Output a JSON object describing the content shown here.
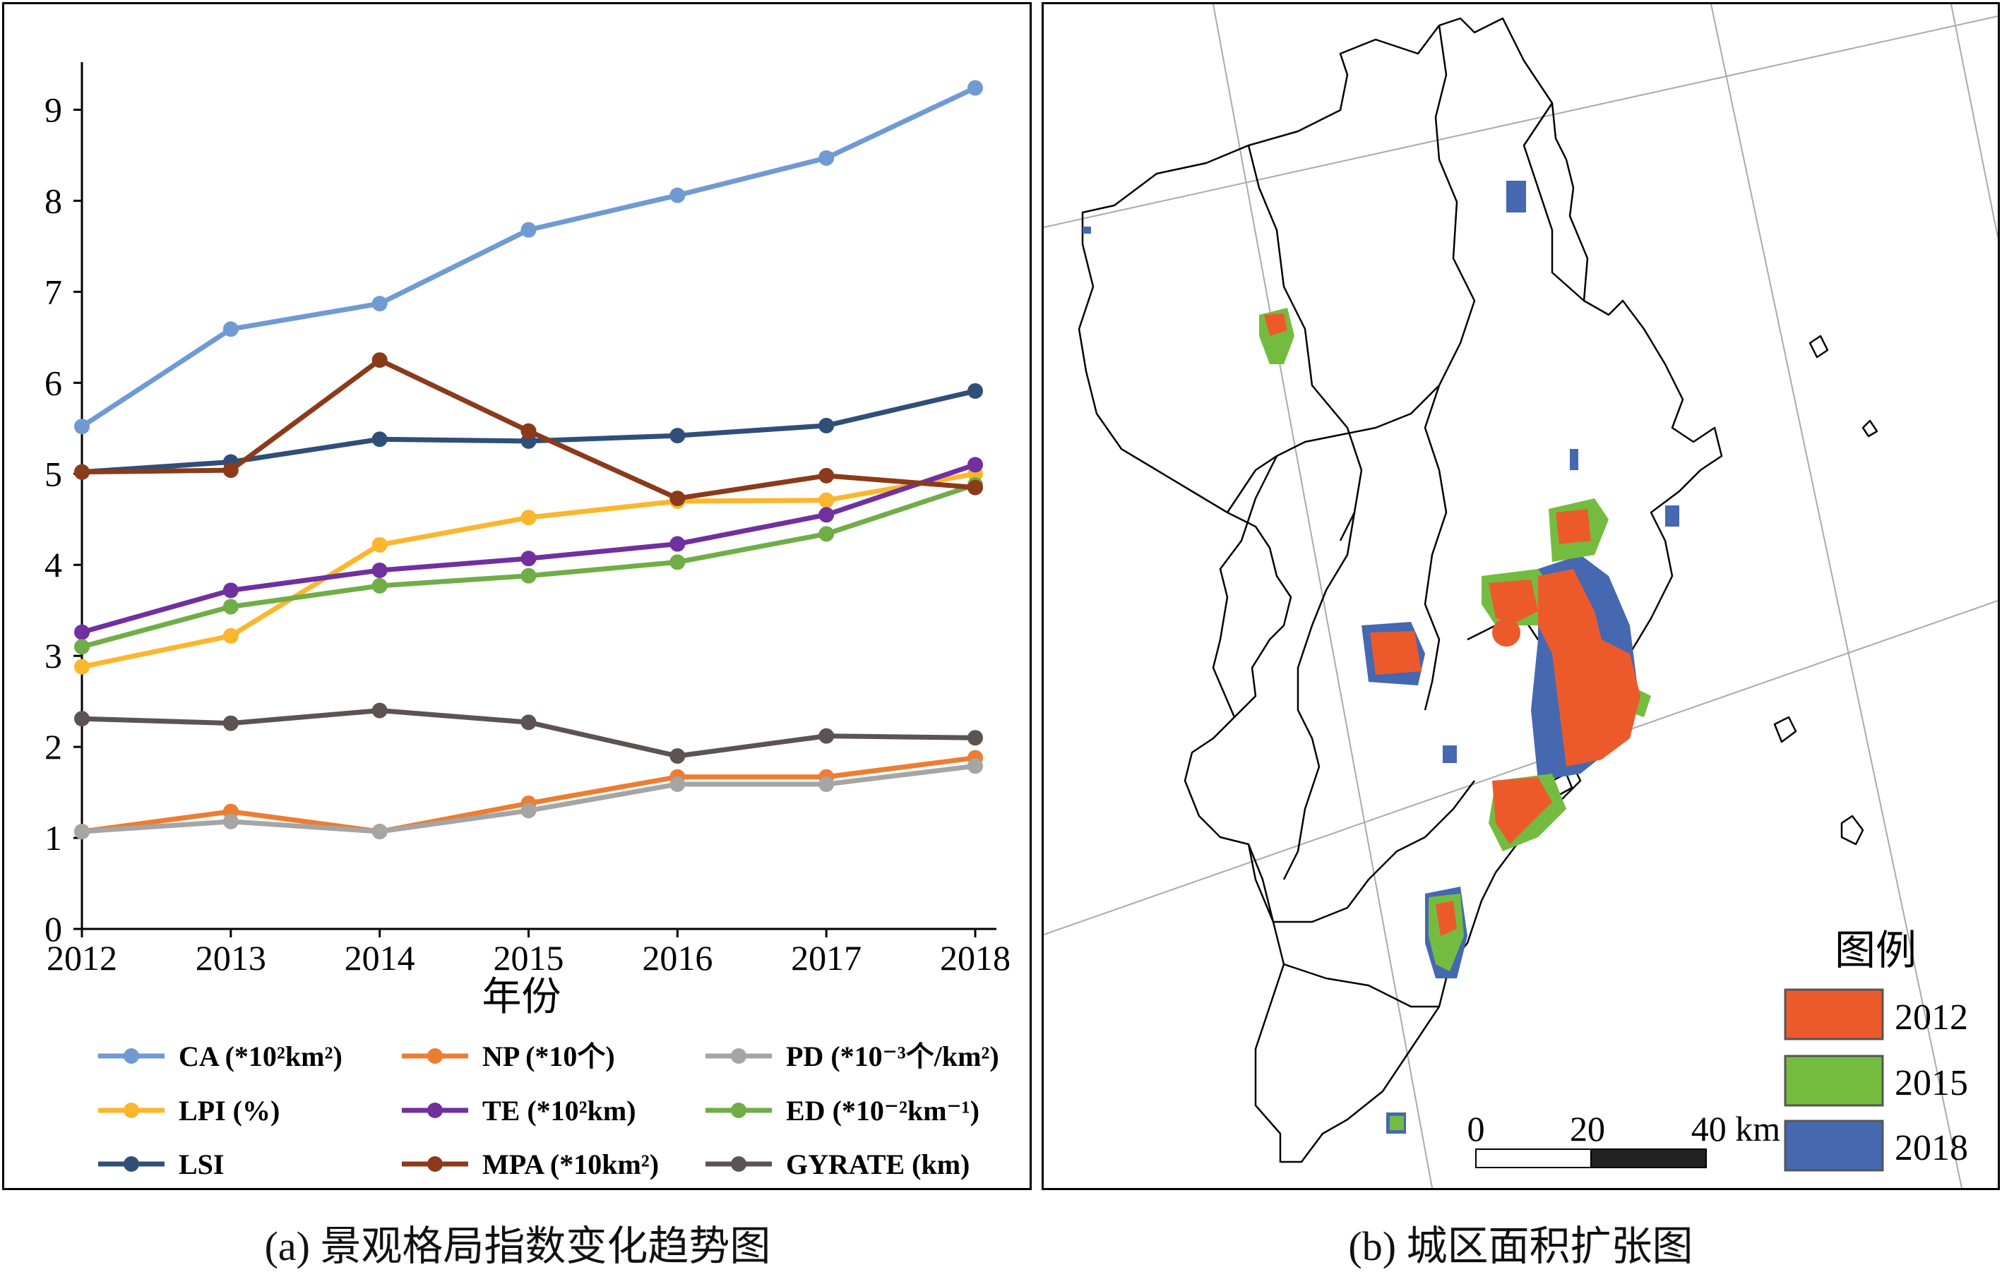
{
  "chart_data": {
    "type": "line",
    "xlabel": "年份",
    "x": [
      "2012",
      "2013",
      "2014",
      "2015",
      "2016",
      "2017",
      "2018"
    ],
    "ylim": [
      0,
      9.5
    ],
    "yticks": [
      "0",
      "1",
      "2",
      "3",
      "4",
      "5",
      "6",
      "7",
      "8",
      "9"
    ],
    "legend_position": "bottom",
    "series": [
      {
        "name": "CA (*10²km²)",
        "color": "#6f9ad3",
        "values": [
          5.52,
          6.59,
          6.87,
          7.68,
          8.06,
          8.47,
          9.24
        ]
      },
      {
        "name": "NP (*10个)",
        "color": "#ed7d31",
        "values": [
          1.07,
          1.29,
          1.07,
          1.38,
          1.67,
          1.67,
          1.88
        ]
      },
      {
        "name": "PD (*10⁻³个/km²)",
        "color": "#a5a5a5",
        "values": [
          1.07,
          1.18,
          1.07,
          1.3,
          1.59,
          1.59,
          1.79
        ]
      },
      {
        "name": "LPI (%)",
        "color": "#fbb62d",
        "values": [
          2.88,
          3.22,
          4.22,
          4.52,
          4.7,
          4.71,
          5.0
        ]
      },
      {
        "name": "TE (*10²km)",
        "color": "#7030a0",
        "values": [
          3.26,
          3.72,
          3.94,
          4.07,
          4.23,
          4.55,
          5.1
        ]
      },
      {
        "name": "ED (*10⁻²km⁻¹)",
        "color": "#70ad47",
        "values": [
          3.1,
          3.54,
          3.77,
          3.88,
          4.03,
          4.34,
          4.88
        ]
      },
      {
        "name": "LSI",
        "color": "#2f4e7a",
        "values": [
          5.02,
          5.13,
          5.38,
          5.36,
          5.42,
          5.53,
          5.91
        ]
      },
      {
        "name": "MPA (*10km²)",
        "color": "#8b3a1a",
        "values": [
          5.02,
          5.04,
          6.25,
          5.47,
          4.73,
          4.98,
          4.85
        ]
      },
      {
        "name": "GYRATE (km)",
        "color": "#5d5353",
        "values": [
          2.31,
          2.26,
          2.4,
          2.27,
          1.9,
          2.12,
          2.1
        ]
      }
    ]
  },
  "map": {
    "legend_title": "图例",
    "legend_items": [
      {
        "label": "2012",
        "color": "#ec5a2c"
      },
      {
        "label": "2015",
        "color": "#74bc40"
      },
      {
        "label": "2018",
        "color": "#4568b0"
      }
    ],
    "scale_labels": [
      "0",
      "20",
      "40 km"
    ]
  },
  "captions": {
    "a": "(a) 景观格局指数变化趋势图",
    "b": "(b) 城区面积扩张图"
  }
}
